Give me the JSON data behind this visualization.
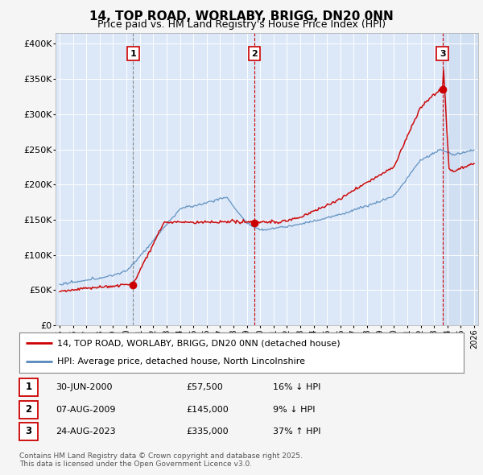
{
  "title": "14, TOP ROAD, WORLABY, BRIGG, DN20 0NN",
  "subtitle": "Price paid vs. HM Land Registry's House Price Index (HPI)",
  "ylabel_ticks": [
    "£0",
    "£50K",
    "£100K",
    "£150K",
    "£200K",
    "£250K",
    "£300K",
    "£350K",
    "£400K"
  ],
  "ytick_values": [
    0,
    50000,
    100000,
    150000,
    200000,
    250000,
    300000,
    350000,
    400000
  ],
  "ylim": [
    0,
    415000
  ],
  "xlim_start": 1994.7,
  "xlim_end": 2026.3,
  "fig_bg_color": "#f5f5f5",
  "plot_bg_color": "#dce8f8",
  "grid_color": "#ffffff",
  "red_color": "#cc0000",
  "blue_color": "#5588bb",
  "sale1_year": 2000.5,
  "sale1_price": 57500,
  "sale2_year": 2009.58,
  "sale2_price": 145000,
  "sale3_year": 2023.63,
  "sale3_price": 335000,
  "legend_entries": [
    {
      "label": "14, TOP ROAD, WORLABY, BRIGG, DN20 0NN (detached house)",
      "color": "#cc0000"
    },
    {
      "label": "HPI: Average price, detached house, North Lincolnshire",
      "color": "#5588bb"
    }
  ],
  "table_rows": [
    {
      "num": "1",
      "date": "30-JUN-2000",
      "price": "£57,500",
      "hpi": "16% ↓ HPI"
    },
    {
      "num": "2",
      "date": "07-AUG-2009",
      "price": "£145,000",
      "hpi": "9% ↓ HPI"
    },
    {
      "num": "3",
      "date": "24-AUG-2023",
      "price": "£335,000",
      "hpi": "37% ↑ HPI"
    }
  ],
  "footer": "Contains HM Land Registry data © Crown copyright and database right 2025.\nThis data is licensed under the Open Government Licence v3.0."
}
